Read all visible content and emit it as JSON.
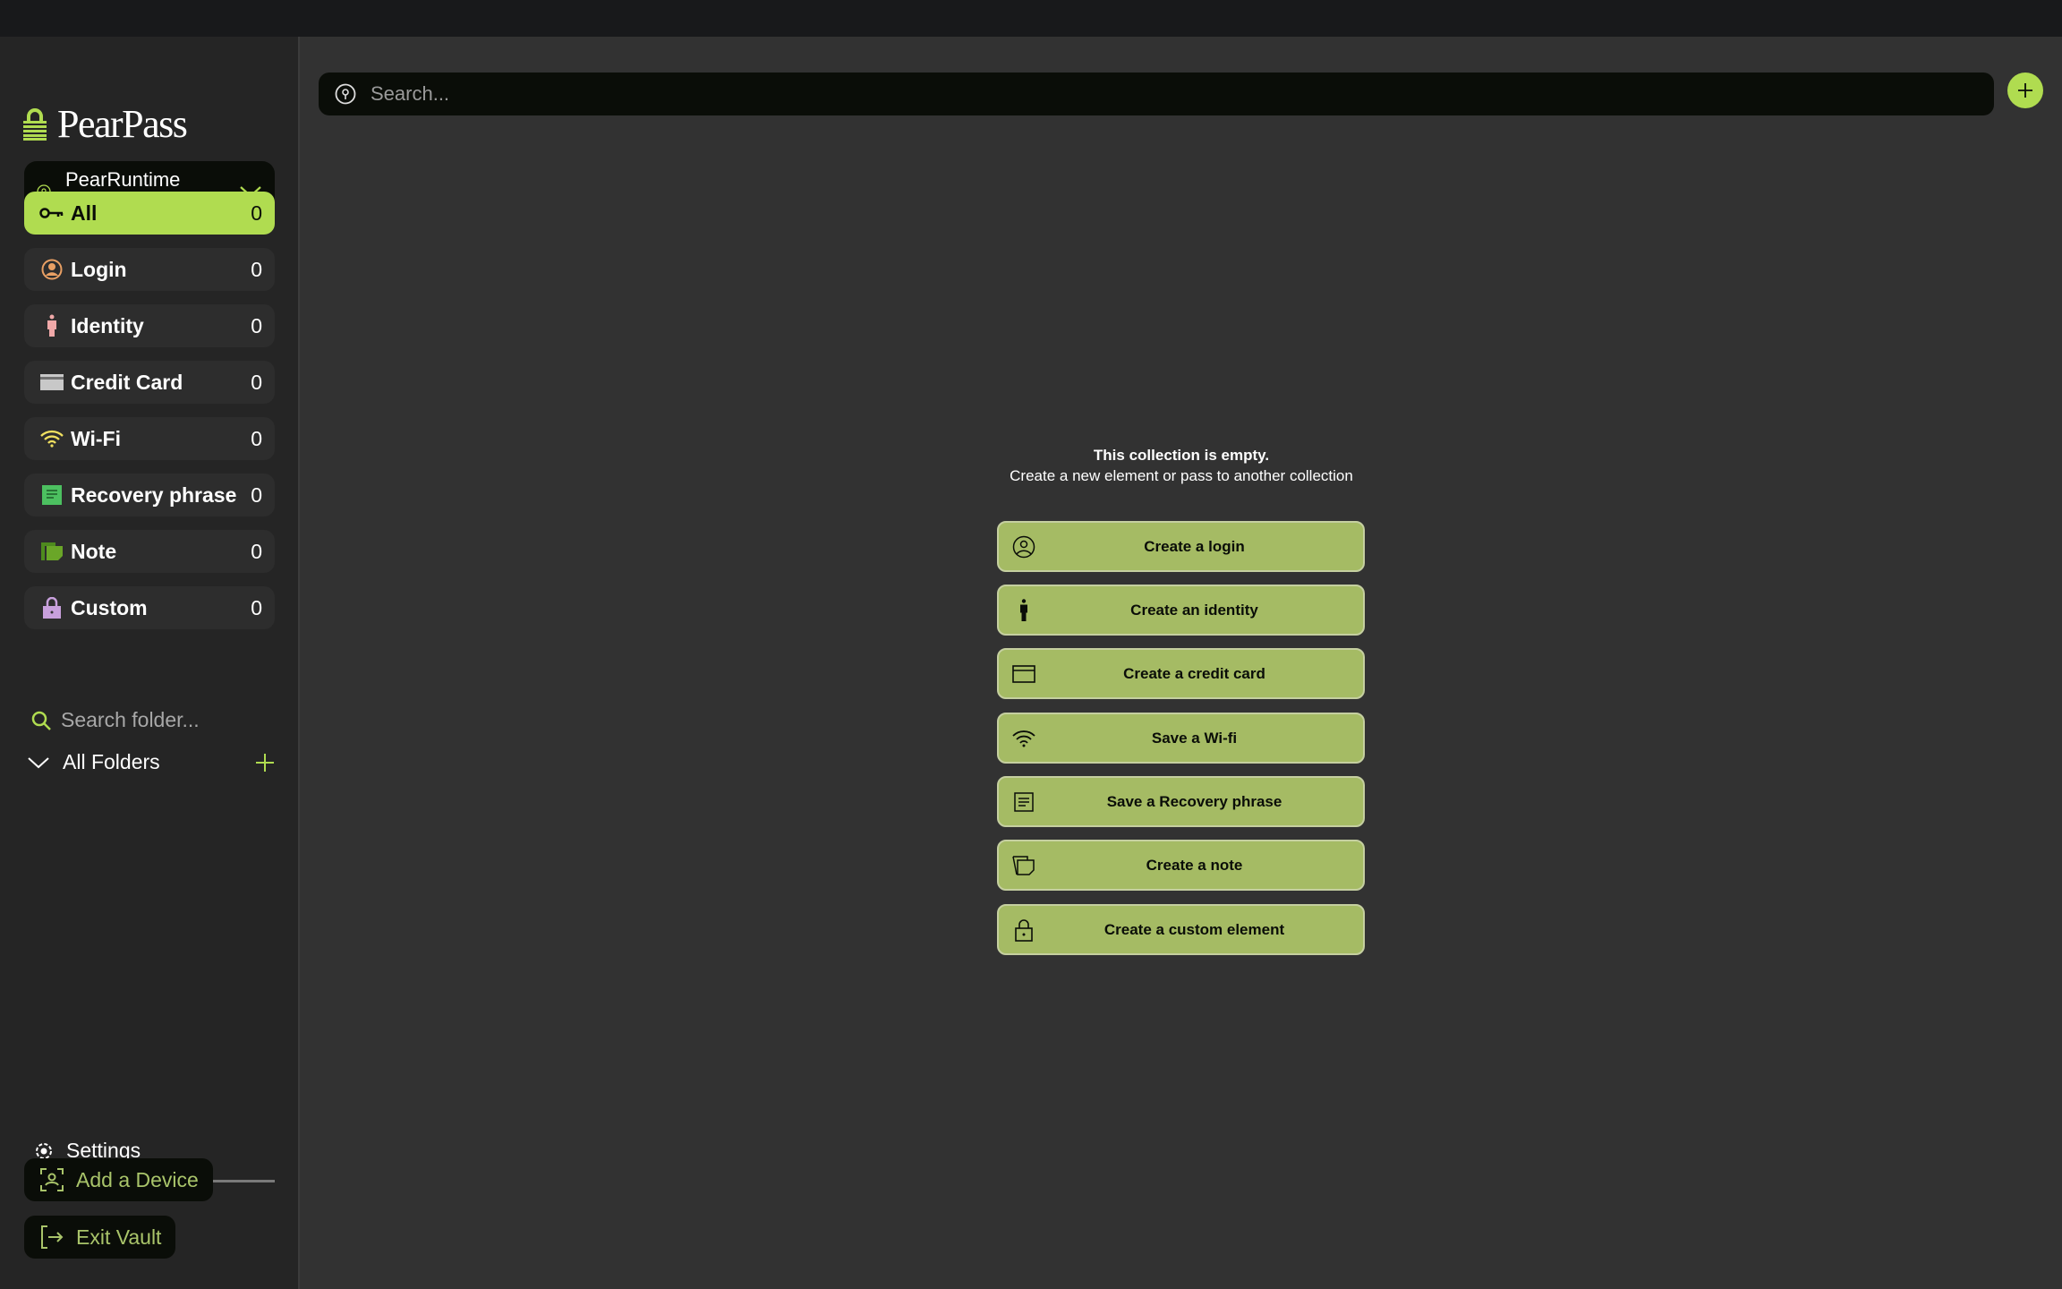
{
  "app": {
    "name": "PearPass",
    "accent": "#b0dc50"
  },
  "sidebar": {
    "vault": {
      "name": "PearRuntime Credentials"
    },
    "categories": [
      {
        "label": "All",
        "count": "0",
        "icon": "key-icon"
      },
      {
        "label": "Login",
        "count": "0",
        "icon": "user-circle-icon"
      },
      {
        "label": "Identity",
        "count": "0",
        "icon": "person-icon"
      },
      {
        "label": "Credit Card",
        "count": "0",
        "icon": "credit-card-icon"
      },
      {
        "label": "Wi-Fi",
        "count": "0",
        "icon": "wifi-icon"
      },
      {
        "label": "Recovery phrase",
        "count": "0",
        "icon": "document-icon"
      },
      {
        "label": "Note",
        "count": "0",
        "icon": "note-icon"
      },
      {
        "label": "Custom",
        "count": "0",
        "icon": "lock-icon"
      }
    ],
    "folder_search_placeholder": "Search folder...",
    "all_folders": "All Folders",
    "settings": "Settings",
    "add_device": "Add a Device",
    "exit_vault": "Exit Vault"
  },
  "search": {
    "placeholder": "Search..."
  },
  "empty": {
    "title": "This collection is empty.",
    "subtitle": "Create a new element or pass to another collection",
    "actions": [
      {
        "label": "Create a login",
        "icon": "user-circle-icon"
      },
      {
        "label": "Create an identity",
        "icon": "person-icon"
      },
      {
        "label": "Create a credit card",
        "icon": "credit-card-icon"
      },
      {
        "label": "Save a Wi-fi",
        "icon": "wifi-icon"
      },
      {
        "label": "Save a Recovery phrase",
        "icon": "document-icon"
      },
      {
        "label": "Create a note",
        "icon": "note-icon"
      },
      {
        "label": "Create a custom element",
        "icon": "lock-icon"
      }
    ]
  }
}
